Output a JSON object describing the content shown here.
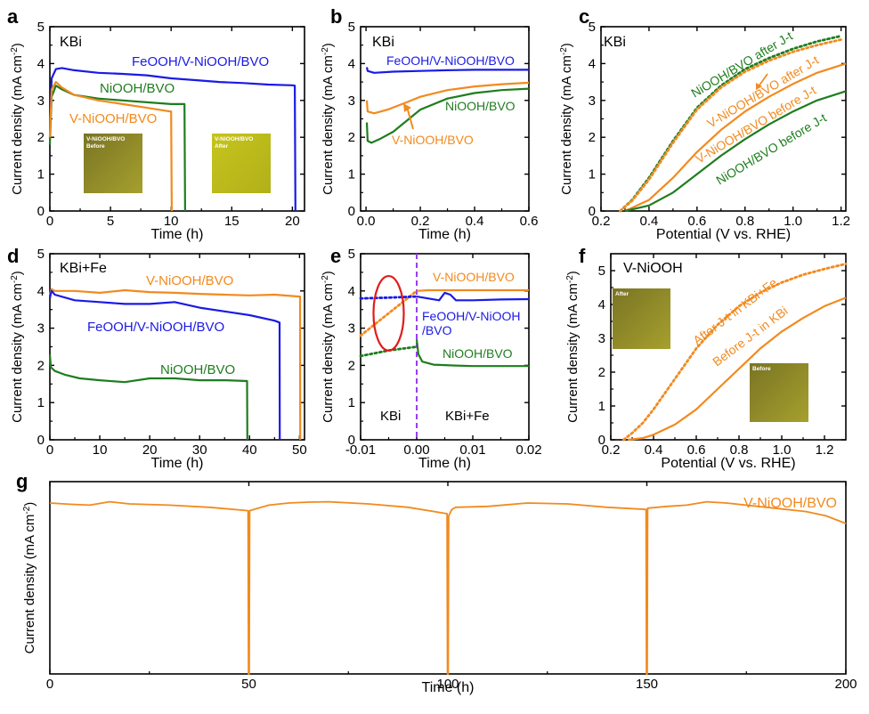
{
  "colors": {
    "blue": "#1a1ae6",
    "green": "#1e7d1e",
    "orange": "#f28a1e",
    "red": "#e01b1b",
    "purple": "#9b3df2",
    "photo": "#9c9a2a",
    "photoDark": "#6e6a1e",
    "photoBright": "#c9c81a"
  },
  "common": {
    "ylabel": "Current density (mA cm",
    "ylabel_sup": "-2",
    "ylabel_end": ")"
  },
  "chart_data": [
    {
      "id": "a",
      "type": "line",
      "panel_label": "a",
      "electrolyte": "KBi",
      "xlabel": "Time (h)",
      "xlim": [
        0,
        21
      ],
      "ylim": [
        0,
        5
      ],
      "xticks": [
        0,
        5,
        10,
        15,
        20
      ],
      "yticks": [
        0,
        1,
        2,
        3,
        4,
        5
      ],
      "series": [
        {
          "name": "FeOOH/V-NiOOH/BVO",
          "color": "blue",
          "style": "solid",
          "x": [
            0,
            0.15,
            0.5,
            1,
            2,
            4,
            6,
            8,
            10,
            12,
            14,
            16,
            18,
            20,
            20.2,
            20.25
          ],
          "y": [
            2.0,
            3.6,
            3.85,
            3.88,
            3.82,
            3.75,
            3.72,
            3.68,
            3.6,
            3.55,
            3.5,
            3.47,
            3.43,
            3.41,
            3.4,
            0
          ]
        },
        {
          "name": "NiOOH/BVO",
          "color": "green",
          "style": "solid",
          "x": [
            0,
            0.15,
            0.5,
            1,
            2,
            4,
            6,
            8,
            10,
            11,
            11.1,
            11.15
          ],
          "y": [
            1.8,
            3.1,
            3.4,
            3.3,
            3.15,
            3.05,
            3.0,
            2.95,
            2.9,
            2.9,
            2.9,
            0
          ]
        },
        {
          "name": "V-NiOOH/BVO",
          "color": "orange",
          "style": "solid",
          "x": [
            0,
            0.15,
            0.5,
            1,
            2,
            4,
            6,
            8,
            9.9,
            10.0,
            10.05
          ],
          "y": [
            2.0,
            3.3,
            3.5,
            3.35,
            3.15,
            3.0,
            2.9,
            2.8,
            2.7,
            2.7,
            0
          ]
        }
      ],
      "annotations": [
        "FeOOH/V-NiOOH/BVO",
        "NiOOH/BVO",
        "V-NiOOH/BVO"
      ],
      "insets": [
        {
          "label": "V-NiOOH/BVO",
          "sub": "Before"
        },
        {
          "label": "V-NiOOH/BVO",
          "sub": "After"
        }
      ]
    },
    {
      "id": "b",
      "type": "line",
      "panel_label": "b",
      "electrolyte": "KBi",
      "xlabel": "Time (h)",
      "xlim": [
        -0.02,
        0.6
      ],
      "ylim": [
        0,
        5
      ],
      "xticks": [
        0.0,
        0.2,
        0.4,
        0.6
      ],
      "xtick_labels": [
        "0.0",
        "0.2",
        "0.4",
        "0.6"
      ],
      "yticks": [
        0,
        1,
        2,
        3,
        4,
        5
      ],
      "series": [
        {
          "name": "FeOOH/V-NiOOH/BVO",
          "color": "blue",
          "style": "solid",
          "x": [
            0.003,
            0.006,
            0.03,
            0.1,
            0.2,
            0.3,
            0.4,
            0.5,
            0.6
          ],
          "y": [
            3.9,
            3.8,
            3.75,
            3.78,
            3.8,
            3.82,
            3.83,
            3.83,
            3.83
          ]
        },
        {
          "name": "NiOOH/BVO",
          "color": "green",
          "style": "solid",
          "x": [
            0.003,
            0.006,
            0.02,
            0.05,
            0.1,
            0.15,
            0.2,
            0.3,
            0.4,
            0.5,
            0.6
          ],
          "y": [
            2.4,
            1.9,
            1.85,
            1.95,
            2.15,
            2.45,
            2.75,
            3.05,
            3.2,
            3.28,
            3.32
          ]
        },
        {
          "name": "V-NiOOH/BVO",
          "color": "orange",
          "style": "solid",
          "x": [
            0.003,
            0.006,
            0.03,
            0.08,
            0.15,
            0.2,
            0.3,
            0.4,
            0.5,
            0.6
          ],
          "y": [
            3.0,
            2.7,
            2.65,
            2.75,
            2.95,
            3.1,
            3.28,
            3.38,
            3.44,
            3.48
          ]
        }
      ],
      "annotations": [
        "FeOOH/V-NiOOH/BVO",
        "NiOOH/BVO",
        "V-NiOOH/BVO"
      ]
    },
    {
      "id": "c",
      "type": "line",
      "panel_label": "c",
      "electrolyte": "KBi",
      "xlabel": "Potential (V vs. RHE)",
      "xlim": [
        0.2,
        1.22
      ],
      "ylim": [
        0,
        5
      ],
      "xticks": [
        0.2,
        0.4,
        0.6,
        0.8,
        1.0,
        1.2
      ],
      "xtick_labels": [
        "0.2",
        "0.4",
        "0.6",
        "0.8",
        "1.0",
        "1.2"
      ],
      "yticks": [
        0,
        1,
        2,
        3,
        4,
        5
      ],
      "series": [
        {
          "name": "NiOOH/BVO after J-t",
          "color": "green",
          "style": "dotted",
          "x": [
            0.28,
            0.33,
            0.4,
            0.5,
            0.6,
            0.7,
            0.8,
            0.9,
            1.0,
            1.1,
            1.2
          ],
          "y": [
            0.0,
            0.3,
            0.9,
            1.9,
            2.8,
            3.4,
            3.85,
            4.15,
            4.4,
            4.6,
            4.75
          ]
        },
        {
          "name": "V-NiOOH/BVO after J-t",
          "color": "orange",
          "style": "dotted",
          "x": [
            0.28,
            0.33,
            0.4,
            0.5,
            0.6,
            0.7,
            0.8,
            0.9,
            1.0,
            1.1,
            1.2
          ],
          "y": [
            0.0,
            0.28,
            0.85,
            1.85,
            2.75,
            3.35,
            3.78,
            4.08,
            4.32,
            4.5,
            4.65
          ]
        },
        {
          "name": "V-NiOOH/BVO before J-t",
          "color": "orange",
          "style": "solid",
          "x": [
            0.3,
            0.4,
            0.5,
            0.6,
            0.7,
            0.8,
            0.9,
            1.0,
            1.1,
            1.22
          ],
          "y": [
            0.0,
            0.3,
            0.9,
            1.6,
            2.2,
            2.7,
            3.1,
            3.45,
            3.75,
            4.0
          ]
        },
        {
          "name": "NiOOH/BVO before J-t",
          "color": "green",
          "style": "solid",
          "x": [
            0.3,
            0.4,
            0.5,
            0.6,
            0.7,
            0.8,
            0.9,
            1.0,
            1.1,
            1.22
          ],
          "y": [
            0.0,
            0.15,
            0.5,
            1.0,
            1.5,
            1.95,
            2.35,
            2.7,
            3.0,
            3.25
          ]
        }
      ],
      "annotations": [
        "NiOOH/BVO after J-t",
        "V-NiOOH/BVO after J-t",
        "V-NiOOH/BVO before J-t",
        "NiOOH/BVO before J-t"
      ]
    },
    {
      "id": "d",
      "type": "line",
      "panel_label": "d",
      "electrolyte": "KBi+Fe",
      "xlabel": "Time (h)",
      "xlim": [
        0,
        51
      ],
      "ylim": [
        0,
        5
      ],
      "xticks": [
        0,
        10,
        20,
        30,
        40,
        50
      ],
      "yticks": [
        0,
        1,
        2,
        3,
        4,
        5
      ],
      "series": [
        {
          "name": "V-NiOOH/BVO",
          "color": "orange",
          "style": "solid",
          "x": [
            0,
            0.3,
            1,
            5,
            10,
            15,
            20,
            25,
            30,
            35,
            40,
            45,
            50,
            50.1,
            50.15
          ],
          "y": [
            3.9,
            4.05,
            4.0,
            4.0,
            3.95,
            4.02,
            3.97,
            3.95,
            3.92,
            3.9,
            3.88,
            3.9,
            3.85,
            3.85,
            0
          ]
        },
        {
          "name": "FeOOH/V-NiOOH/BVO",
          "color": "blue",
          "style": "solid",
          "x": [
            0,
            0.3,
            1,
            5,
            10,
            15,
            20,
            25,
            30,
            35,
            40,
            45,
            46,
            46.05
          ],
          "y": [
            3.8,
            4.0,
            3.9,
            3.75,
            3.7,
            3.65,
            3.65,
            3.7,
            3.55,
            3.45,
            3.35,
            3.2,
            3.15,
            0
          ]
        },
        {
          "name": "NiOOH/BVO",
          "color": "green",
          "style": "solid",
          "x": [
            0,
            0.2,
            1,
            3,
            6,
            10,
            15,
            20,
            25,
            30,
            35,
            39.5,
            39.55
          ],
          "y": [
            2.3,
            1.95,
            1.85,
            1.75,
            1.65,
            1.6,
            1.55,
            1.65,
            1.65,
            1.6,
            1.6,
            1.58,
            0
          ]
        }
      ],
      "annotations": [
        "V-NiOOH/BVO",
        "FeOOH/V-NiOOH/BVO",
        "NiOOH/BVO"
      ]
    },
    {
      "id": "e",
      "type": "line",
      "panel_label": "e",
      "xlabel": "Time (h)",
      "xlim": [
        -0.01,
        0.02
      ],
      "ylim": [
        0,
        5
      ],
      "xticks": [
        -0.01,
        0.0,
        0.01,
        0.02
      ],
      "xtick_labels": [
        "-0.01",
        "0.00",
        "0.01",
        "0.02"
      ],
      "yticks": [
        0,
        1,
        2,
        3,
        4,
        5
      ],
      "divider_x": 0.0,
      "regions": [
        "KBi",
        "KBi+Fe"
      ],
      "series": [
        {
          "name": "V-NiOOH/BVO",
          "color": "orange",
          "style": "solid",
          "x": [
            0.0,
            0.002,
            0.005,
            0.01,
            0.015,
            0.02
          ],
          "y": [
            4.0,
            4.02,
            4.02,
            4.02,
            4.02,
            4.02
          ]
        },
        {
          "name": "V-NiOOH/BVO (KBi)",
          "color": "orange",
          "style": "dotted",
          "x": [
            -0.01,
            -0.0075,
            -0.005,
            -0.0025,
            0.0
          ],
          "y": [
            2.8,
            3.1,
            3.4,
            3.7,
            4.0
          ]
        },
        {
          "name": "FeOOH/V-NiOOH/BVO",
          "color": "blue",
          "style": "solid",
          "x": [
            0.0,
            0.002,
            0.004,
            0.005,
            0.006,
            0.007,
            0.01,
            0.015,
            0.02
          ],
          "y": [
            3.85,
            3.8,
            3.75,
            3.95,
            3.9,
            3.75,
            3.75,
            3.77,
            3.78
          ]
        },
        {
          "name": "FeOOH/V-NiOOH/BVO (KBi)",
          "color": "blue",
          "style": "dotted",
          "x": [
            -0.01,
            -0.005,
            0.0
          ],
          "y": [
            3.8,
            3.82,
            3.85
          ]
        },
        {
          "name": "NiOOH/BVO",
          "color": "green",
          "style": "solid",
          "x": [
            0.0,
            0.0003,
            0.001,
            0.003,
            0.006,
            0.01,
            0.015,
            0.02
          ],
          "y": [
            2.7,
            2.3,
            2.1,
            2.02,
            2.0,
            1.98,
            1.98,
            1.98
          ]
        },
        {
          "name": "NiOOH/BVO (KBi)",
          "color": "green",
          "style": "dotted",
          "x": [
            -0.01,
            -0.005,
            0.0
          ],
          "y": [
            2.25,
            2.4,
            2.5
          ]
        }
      ],
      "annotations": [
        "V-NiOOH/BVO",
        "FeOOH/V-NiOOH",
        "/BVO",
        "NiOOH/BVO"
      ],
      "ellipse": {
        "cx": -0.005,
        "cy": 3.4,
        "rx": 0.0027,
        "ry": 1.0,
        "color": "red"
      }
    },
    {
      "id": "f",
      "type": "line",
      "panel_label": "f",
      "electrolyte": "V-NiOOH",
      "xlabel": "Potential (V vs. RHE)",
      "xlim": [
        0.2,
        1.3
      ],
      "ylim": [
        0,
        5.5
      ],
      "xticks": [
        0.2,
        0.4,
        0.6,
        0.8,
        1.0,
        1.2
      ],
      "xtick_labels": [
        "0.2",
        "0.4",
        "0.6",
        "0.8",
        "1.0",
        "1.2"
      ],
      "yticks": [
        0,
        1,
        2,
        3,
        4,
        5
      ],
      "series": [
        {
          "name": "After J-t in KBi+Fe",
          "color": "orange",
          "style": "dotted",
          "x": [
            0.26,
            0.3,
            0.35,
            0.4,
            0.5,
            0.6,
            0.7,
            0.8,
            0.9,
            1.0,
            1.1,
            1.2,
            1.3
          ],
          "y": [
            0.0,
            0.2,
            0.5,
            0.9,
            1.8,
            2.7,
            3.4,
            3.95,
            4.35,
            4.65,
            4.88,
            5.05,
            5.2
          ]
        },
        {
          "name": "Before J-t in KBi",
          "color": "orange",
          "style": "solid",
          "x": [
            0.28,
            0.35,
            0.4,
            0.5,
            0.6,
            0.7,
            0.8,
            0.9,
            1.0,
            1.1,
            1.2,
            1.3
          ],
          "y": [
            0.0,
            0.05,
            0.15,
            0.45,
            0.9,
            1.5,
            2.1,
            2.7,
            3.2,
            3.6,
            3.95,
            4.2
          ]
        }
      ],
      "annotations": [
        "After J-t in KBi+Fe",
        "Before J-t in KBi"
      ],
      "insets": [
        {
          "label": "After"
        },
        {
          "label": "Before"
        }
      ]
    },
    {
      "id": "g",
      "type": "line",
      "panel_label": "g",
      "xlabel": "Time (h)",
      "xlim": [
        0,
        200
      ],
      "ylim": [
        0,
        4.5
      ],
      "xticks": [
        0,
        50,
        100,
        150,
        200
      ],
      "yticks": [],
      "series": [
        {
          "name": "V-NiOOH/BVO",
          "color": "orange",
          "style": "solid",
          "x": [
            0,
            5,
            10,
            15,
            20,
            30,
            40,
            49.8,
            49.9,
            50.1,
            50.2,
            55,
            60,
            65,
            70,
            80,
            90,
            99.8,
            99.9,
            100.1,
            100.2,
            101,
            102,
            110,
            120,
            130,
            140,
            149.8,
            149.9,
            150.1,
            150.2,
            155,
            160,
            165,
            170,
            180,
            185,
            190,
            195,
            200
          ],
          "y": [
            4.0,
            3.97,
            3.95,
            4.03,
            3.98,
            3.95,
            3.9,
            3.82,
            0,
            0,
            3.82,
            3.95,
            4.0,
            4.02,
            4.03,
            3.98,
            3.9,
            3.75,
            0,
            0,
            3.7,
            3.85,
            3.9,
            3.92,
            4.0,
            3.98,
            3.9,
            3.85,
            0,
            0,
            3.88,
            3.92,
            3.95,
            4.03,
            4.0,
            3.9,
            3.85,
            3.8,
            3.7,
            3.52
          ]
        }
      ],
      "annotations": [
        "V-NiOOH/BVO"
      ]
    }
  ]
}
